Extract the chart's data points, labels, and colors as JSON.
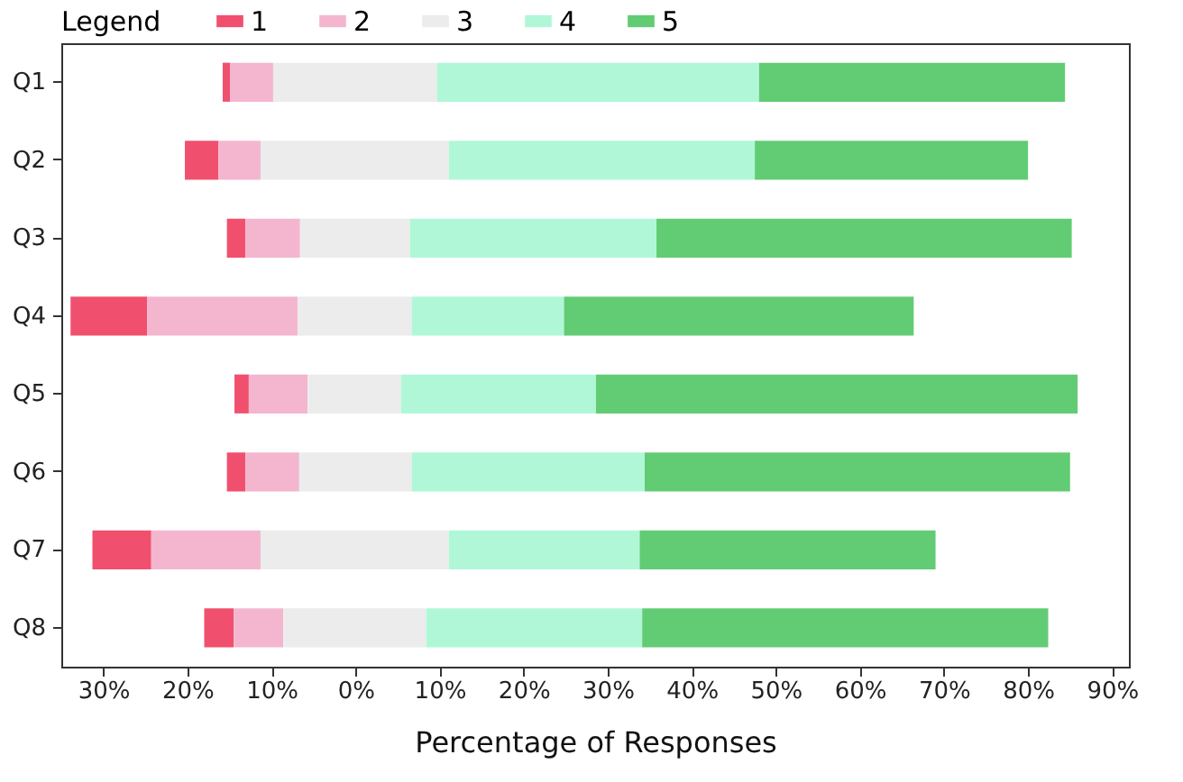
{
  "chart_data": {
    "type": "bar",
    "orientation": "horizontal",
    "xlabel": "Percentage of Responses",
    "legend_title": "Legend",
    "legend": "top",
    "categories": [
      "Q1",
      "Q2",
      "Q3",
      "Q4",
      "Q5",
      "Q6",
      "Q7",
      "Q8"
    ],
    "series": [
      {
        "name": "1",
        "color": "#f0506e",
        "base": [
          -15.8,
          -20.3,
          -15.3,
          -33.9,
          -14.4,
          -15.3,
          -31.3,
          -18.0
        ],
        "values": [
          0.9,
          4.0,
          2.2,
          9.1,
          1.7,
          2.2,
          7.0,
          3.5
        ]
      },
      {
        "name": "2",
        "color": "#f4b6cf",
        "base": [
          -14.9,
          -16.3,
          -13.1,
          -24.8,
          -12.7,
          -13.1,
          -24.3,
          -14.5
        ],
        "values": [
          5.1,
          5.0,
          6.5,
          17.9,
          7.0,
          6.4,
          13.0,
          5.9
        ]
      },
      {
        "name": "3",
        "color": "#ececec",
        "base": [
          -9.8,
          -11.3,
          -6.6,
          -6.9,
          -5.7,
          -6.7,
          -11.3,
          -8.6
        ],
        "values": [
          19.5,
          22.4,
          13.1,
          13.6,
          11.1,
          13.4,
          22.4,
          17.0
        ]
      },
      {
        "name": "4",
        "color": "#b0f7d8",
        "base": [
          9.7,
          11.1,
          6.5,
          6.7,
          5.4,
          6.7,
          11.1,
          8.4
        ],
        "values": [
          38.3,
          36.4,
          29.3,
          18.1,
          23.2,
          27.7,
          22.7,
          25.7
        ]
      },
      {
        "name": "5",
        "color": "#62cc74",
        "base": [
          48.0,
          47.5,
          35.8,
          24.8,
          28.6,
          34.4,
          33.8,
          34.1
        ],
        "values": [
          36.4,
          32.5,
          49.4,
          41.6,
          57.3,
          50.6,
          35.2,
          48.3
        ]
      }
    ],
    "xlim": [
      -35,
      92
    ],
    "xticks": [
      {
        "value": -30,
        "label": "30%"
      },
      {
        "value": -20,
        "label": "20%"
      },
      {
        "value": -10,
        "label": "10%"
      },
      {
        "value": 0,
        "label": "0%"
      },
      {
        "value": 10,
        "label": "10%"
      },
      {
        "value": 20,
        "label": "20%"
      },
      {
        "value": 30,
        "label": "30%"
      },
      {
        "value": 40,
        "label": "40%"
      },
      {
        "value": 50,
        "label": "50%"
      },
      {
        "value": 60,
        "label": "60%"
      },
      {
        "value": 70,
        "label": "70%"
      },
      {
        "value": 80,
        "label": "80%"
      },
      {
        "value": 90,
        "label": "90%"
      }
    ]
  }
}
